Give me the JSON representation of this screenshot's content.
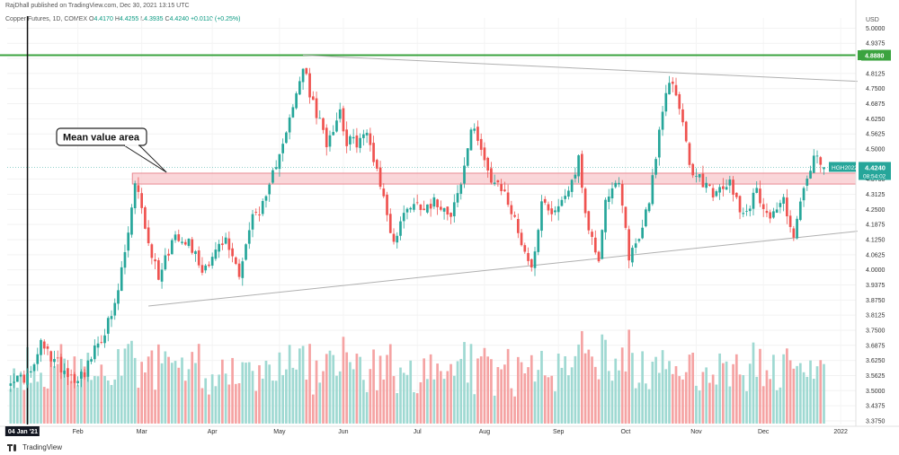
{
  "header": {
    "attribution": "RajDhall published on TradingView.com, Dec 30, 2021 13:15 UTC",
    "symbol": "Copper Futures, 1D, COMEX",
    "ohlc": [
      {
        "label": "O",
        "value": "4.4170"
      },
      {
        "label": "H",
        "value": "4.4255"
      },
      {
        "label": "L",
        "value": "4.3935"
      },
      {
        "label": "C",
        "value": "4.4240"
      }
    ],
    "change": "+0.0110 (+0.25%)"
  },
  "footer": {
    "logo_text": "TradingView"
  },
  "colors": {
    "up": "#26a69a",
    "down": "#ef5350",
    "vol_up": "#9fd9d2",
    "vol_down": "#f5a3a3",
    "resistance": "#3ba33f",
    "zone_fill": "#f8c8cc",
    "zone_stroke": "#e5737d",
    "trendline": "#b0b0b0",
    "price_tag": "#26a69a"
  },
  "chart_data": {
    "type": "candlestick",
    "title": "Copper Futures, 1D, COMEX",
    "currency": "USD",
    "y_ticks": [
      "5.0000",
      "4.9375",
      "4.8750",
      "4.8125",
      "4.7500",
      "4.6875",
      "4.6250",
      "4.5625",
      "4.5000",
      "4.3750",
      "4.3125",
      "4.2500",
      "4.1875",
      "4.1250",
      "4.0625",
      "4.0000",
      "3.9375",
      "3.8750",
      "3.8125",
      "3.7500",
      "3.6875",
      "3.6250",
      "3.5625",
      "3.5000",
      "3.4375",
      "3.3750"
    ],
    "y_tick_values": [
      5.0,
      4.9375,
      4.875,
      4.8125,
      4.75,
      4.6875,
      4.625,
      4.5625,
      4.5,
      4.375,
      4.3125,
      4.25,
      4.1875,
      4.125,
      4.0625,
      4.0,
      3.9375,
      3.875,
      3.8125,
      3.75,
      3.6875,
      3.625,
      3.5625,
      3.5,
      3.4375,
      3.375
    ],
    "ylim": [
      3.36,
      5.02
    ],
    "x_labels": [
      {
        "label": "04 Jan '21",
        "index": 0,
        "highlight": true
      },
      {
        "label": "Feb",
        "index": 20
      },
      {
        "label": "Mar",
        "index": 39
      },
      {
        "label": "Apr",
        "index": 60
      },
      {
        "label": "May",
        "index": 80
      },
      {
        "label": "Jun",
        "index": 99
      },
      {
        "label": "Jul",
        "index": 121
      },
      {
        "label": "Aug",
        "index": 141
      },
      {
        "label": "Sep",
        "index": 163
      },
      {
        "label": "Oct",
        "index": 183
      },
      {
        "label": "Nov",
        "index": 204
      },
      {
        "label": "Dec",
        "index": 224
      },
      {
        "label": "2022",
        "index": 247
      }
    ],
    "num_bars": 252,
    "last_index": 242,
    "anchors": [
      [
        0,
        3.555
      ],
      [
        2,
        3.545
      ],
      [
        6,
        3.565
      ],
      [
        9,
        3.69
      ],
      [
        12,
        3.64
      ],
      [
        15,
        3.6
      ],
      [
        19,
        3.55
      ],
      [
        22,
        3.58
      ],
      [
        27,
        3.72
      ],
      [
        31,
        3.84
      ],
      [
        35,
        4.15
      ],
      [
        37,
        4.34
      ],
      [
        39,
        4.27
      ],
      [
        41,
        4.1
      ],
      [
        44,
        3.98
      ],
      [
        49,
        4.15
      ],
      [
        53,
        4.12
      ],
      [
        57,
        4.0
      ],
      [
        61,
        4.08
      ],
      [
        64,
        4.12
      ],
      [
        68,
        3.99
      ],
      [
        72,
        4.22
      ],
      [
        76,
        4.28
      ],
      [
        80,
        4.5
      ],
      [
        84,
        4.66
      ],
      [
        87,
        4.84
      ],
      [
        90,
        4.68
      ],
      [
        94,
        4.53
      ],
      [
        98,
        4.66
      ],
      [
        100,
        4.53
      ],
      [
        103,
        4.53
      ],
      [
        106,
        4.56
      ],
      [
        109,
        4.42
      ],
      [
        112,
        4.23
      ],
      [
        114,
        4.11
      ],
      [
        118,
        4.27
      ],
      [
        123,
        4.27
      ],
      [
        127,
        4.28
      ],
      [
        131,
        4.24
      ],
      [
        134,
        4.35
      ],
      [
        137,
        4.58
      ],
      [
        140,
        4.52
      ],
      [
        143,
        4.36
      ],
      [
        147,
        4.32
      ],
      [
        152,
        4.12
      ],
      [
        155,
        4.0
      ],
      [
        158,
        4.28
      ],
      [
        162,
        4.24
      ],
      [
        166,
        4.34
      ],
      [
        169,
        4.45
      ],
      [
        172,
        4.16
      ],
      [
        175,
        4.05
      ],
      [
        177,
        4.3
      ],
      [
        181,
        4.35
      ],
      [
        184,
        4.06
      ],
      [
        187,
        4.13
      ],
      [
        190,
        4.3
      ],
      [
        193,
        4.56
      ],
      [
        196,
        4.79
      ],
      [
        199,
        4.69
      ],
      [
        202,
        4.42
      ],
      [
        206,
        4.36
      ],
      [
        210,
        4.31
      ],
      [
        214,
        4.36
      ],
      [
        218,
        4.23
      ],
      [
        222,
        4.32
      ],
      [
        226,
        4.22
      ],
      [
        230,
        4.29
      ],
      [
        233,
        4.14
      ],
      [
        236,
        4.33
      ],
      [
        239,
        4.46
      ],
      [
        242,
        4.424
      ]
    ],
    "last_ohlc": {
      "open": 4.417,
      "high": 4.4255,
      "low": 4.3935,
      "close": 4.424
    },
    "resistance": {
      "value": 4.888,
      "label": "4.8880"
    },
    "mean_value_zone": {
      "top": 4.4,
      "bottom": 4.355,
      "start_index": 37
    },
    "trendlines": [
      {
        "name": "upper",
        "from": {
          "index": 87,
          "value": 4.888
        },
        "to": {
          "index": 252,
          "value": 4.78
        }
      },
      {
        "name": "lower",
        "from": {
          "index": 41,
          "value": 3.85
        },
        "to": {
          "index": 252,
          "value": 4.16
        }
      }
    ],
    "vertical_marker_index": 5,
    "annotation": {
      "text": "Mean value area"
    },
    "price_tag": {
      "symbol": "HGH2022",
      "price": "4.4240",
      "countdown": "08:54:02"
    },
    "volume": {
      "max_units": 100
    }
  }
}
